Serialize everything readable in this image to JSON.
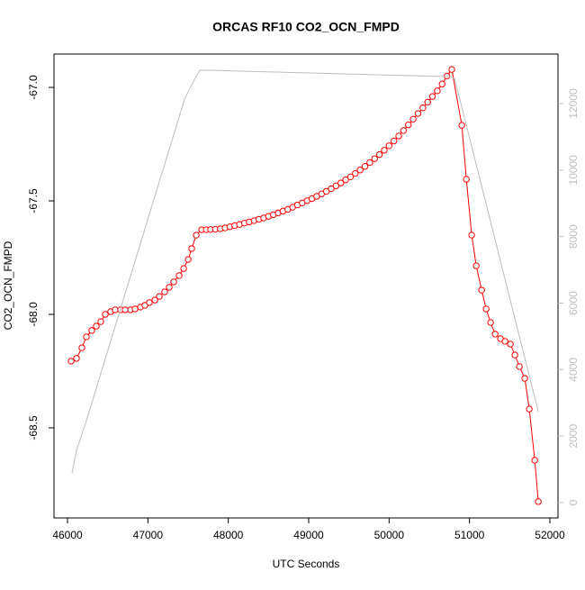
{
  "chart_data": {
    "type": "line",
    "title": "ORCAS RF10 CO2_OCN_FMPD",
    "xlabel": "UTC Seconds",
    "ylabel": "CO2_OCN_FMPD",
    "xlim": [
      45832,
      52101
    ],
    "xticks": [
      46000,
      47000,
      48000,
      49000,
      50000,
      51000,
      52000
    ],
    "ylim": [
      -68.897,
      -66.853
    ],
    "yticks": [
      {
        "value": -67,
        "label": "-67.0"
      },
      -67.5,
      {
        "value": -68,
        "label": "-68.0"
      },
      -68.5
    ],
    "y2lim": [
      -460,
      13490
    ],
    "y2ticks": [
      0,
      2000,
      4000,
      6000,
      8000,
      10000,
      12000
    ],
    "series": [
      {
        "color": "#ff0000",
        "markers": true,
        "x": [
          46045,
          46112,
          46179,
          46235,
          46302,
          46358,
          46414,
          46470,
          46537,
          46593,
          46661,
          46717,
          46784,
          46840,
          46907,
          46963,
          47019,
          47086,
          47142,
          47209,
          47265,
          47321,
          47389,
          47445,
          47501,
          47545,
          47601,
          47669,
          47725,
          47780,
          47840,
          47900,
          47960,
          48020,
          48080,
          48140,
          48200,
          48260,
          48320,
          48380,
          48440,
          48500,
          48560,
          48620,
          48680,
          48740,
          48800,
          48860,
          48920,
          48980,
          49040,
          49100,
          49160,
          49220,
          49280,
          49340,
          49400,
          49460,
          49520,
          49580,
          49640,
          49700,
          49760,
          49820,
          49880,
          49940,
          50000,
          50060,
          50120,
          50180,
          50240,
          50300,
          50360,
          50420,
          50480,
          50540,
          50600,
          50660,
          50720,
          50780,
          50905,
          50961,
          51028,
          51084,
          51151,
          51207,
          51263,
          51319,
          51386,
          51442,
          51509,
          51565,
          51621,
          51688,
          51744,
          51812,
          51856
        ],
        "values": [
          -68.206,
          -68.194,
          -68.147,
          -68.099,
          -68.071,
          -68.052,
          -68.032,
          -68.0,
          -67.988,
          -67.98,
          -67.98,
          -67.98,
          -67.98,
          -67.976,
          -67.968,
          -67.96,
          -67.948,
          -67.937,
          -67.921,
          -67.901,
          -67.881,
          -67.857,
          -67.829,
          -67.798,
          -67.758,
          -67.71,
          -67.651,
          -67.627,
          -67.627,
          -67.626,
          -67.625,
          -67.623,
          -67.619,
          -67.614,
          -67.609,
          -67.604,
          -67.598,
          -67.593,
          -67.587,
          -67.581,
          -67.575,
          -67.568,
          -67.561,
          -67.553,
          -67.545,
          -67.537,
          -67.528,
          -67.518,
          -67.509,
          -67.499,
          -67.49,
          -67.48,
          -67.469,
          -67.458,
          -67.446,
          -67.434,
          -67.421,
          -67.407,
          -67.394,
          -67.379,
          -67.364,
          -67.348,
          -67.331,
          -67.314,
          -67.296,
          -67.277,
          -67.257,
          -67.236,
          -67.214,
          -67.19,
          -67.165,
          -67.14,
          -67.115,
          -67.09,
          -67.065,
          -67.04,
          -67.015,
          -66.985,
          -66.95,
          -66.921,
          -67.167,
          -67.405,
          -67.651,
          -67.786,
          -67.893,
          -67.976,
          -68.036,
          -68.087,
          -68.107,
          -68.119,
          -68.131,
          -68.179,
          -68.23,
          -68.282,
          -68.417,
          -68.643,
          -68.825
        ]
      },
      {
        "color": "#bebebe",
        "axis": "y2",
        "x": [
          46056,
          46112,
          46224,
          47456,
          47568,
          47646,
          47758,
          50760,
          50815,
          51856
        ],
        "values": [
          894,
          1571,
          2383,
          12135,
          12676,
          13001,
          13001,
          12811,
          12757,
          2736
        ]
      }
    ]
  }
}
